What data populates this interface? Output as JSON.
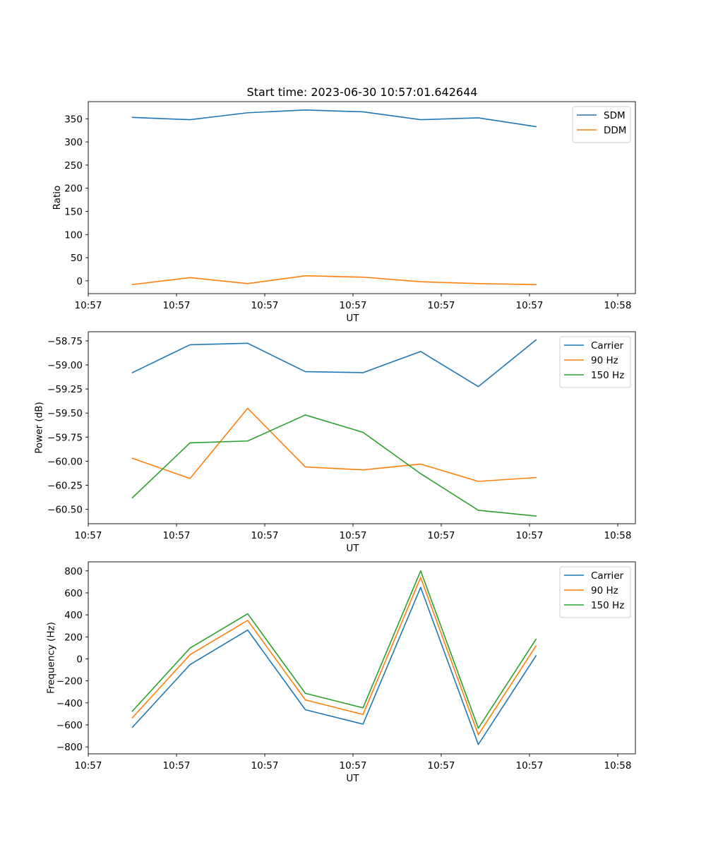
{
  "chart_data": [
    {
      "type": "line",
      "title": "Start time: 2023-06-30 10:57:01.642644",
      "xlabel": "UT",
      "ylabel": "Ratio",
      "xlim": [
        0,
        9.3
      ],
      "ylim": [
        -27.6,
        387.0
      ],
      "x_ticks": [
        0,
        1.5,
        3,
        4.5,
        6,
        7.5,
        9
      ],
      "x_tick_labels": [
        "10:57",
        "10:57",
        "10:57",
        "10:57",
        "10:57",
        "10:57",
        "10:58"
      ],
      "y_ticks": [
        0,
        50,
        100,
        150,
        200,
        250,
        300,
        350
      ],
      "y_tick_labels": [
        "0",
        "50",
        "100",
        "150",
        "200",
        "250",
        "300",
        "350"
      ],
      "x": [
        0.75,
        1.73,
        2.71,
        3.69,
        4.67,
        5.65,
        6.63,
        7.61
      ],
      "series": [
        {
          "name": "SDM",
          "color": "#1f77b4",
          "values": [
            353,
            348,
            363,
            369,
            365,
            348,
            352,
            333
          ]
        },
        {
          "name": "DDM",
          "color": "#ff7f0e",
          "values": [
            -8,
            7,
            -6,
            11,
            8,
            -2,
            -6,
            -8
          ]
        }
      ],
      "legend": "top-right",
      "grid": false
    },
    {
      "type": "line",
      "title": "",
      "xlabel": "UT",
      "ylabel": "Power (dB)",
      "xlim": [
        0,
        9.3
      ],
      "ylim": [
        -60.65,
        -58.655
      ],
      "x_ticks": [
        0,
        1.5,
        3,
        4.5,
        6,
        7.5,
        9
      ],
      "x_tick_labels": [
        "10:57",
        "10:57",
        "10:57",
        "10:57",
        "10:57",
        "10:57",
        "10:58"
      ],
      "y_ticks": [
        -60.5,
        -60.25,
        -60.0,
        -59.75,
        -59.5,
        -59.25,
        -59.0,
        -58.75
      ],
      "y_tick_labels": [
        "−60.50",
        "−60.25",
        "−60.00",
        "−59.75",
        "−59.50",
        "−59.25",
        "−59.00",
        "−58.75"
      ],
      "x": [
        0.75,
        1.73,
        2.71,
        3.69,
        4.67,
        5.65,
        6.63,
        7.61
      ],
      "series": [
        {
          "name": "Carrier",
          "color": "#1f77b4",
          "values": [
            -59.08,
            -58.79,
            -58.775,
            -59.07,
            -59.08,
            -58.86,
            -59.225,
            -58.74
          ]
        },
        {
          "name": "90 Hz",
          "color": "#ff7f0e",
          "values": [
            -59.97,
            -60.18,
            -59.45,
            -60.06,
            -60.09,
            -60.03,
            -60.21,
            -60.17
          ]
        },
        {
          "name": "150 Hz",
          "color": "#2ca02c",
          "values": [
            -60.38,
            -59.81,
            -59.79,
            -59.52,
            -59.7,
            -60.13,
            -60.51,
            -60.57
          ]
        }
      ],
      "legend": "top-right",
      "grid": false
    },
    {
      "type": "line",
      "title": "",
      "xlabel": "UT",
      "ylabel": "Frequency (Hz)",
      "xlim": [
        0,
        9.3
      ],
      "ylim": [
        -863,
        882
      ],
      "x_ticks": [
        0,
        1.5,
        3,
        4.5,
        6,
        7.5,
        9
      ],
      "x_tick_labels": [
        "10:57",
        "10:57",
        "10:57",
        "10:57",
        "10:57",
        "10:57",
        "10:58"
      ],
      "y_ticks": [
        -800,
        -600,
        -400,
        -200,
        0,
        200,
        400,
        600,
        800
      ],
      "y_tick_labels": [
        "−800",
        "−600",
        "−400",
        "−200",
        "0",
        "200",
        "400",
        "600",
        "800"
      ],
      "x": [
        0.75,
        1.73,
        2.71,
        3.69,
        4.67,
        5.65,
        6.63,
        7.61
      ],
      "series": [
        {
          "name": "Carrier",
          "color": "#1f77b4",
          "values": [
            -622,
            -52,
            262,
            -462,
            -593,
            650,
            -778,
            28
          ]
        },
        {
          "name": "90 Hz",
          "color": "#ff7f0e",
          "values": [
            -535,
            38,
            350,
            -373,
            -505,
            740,
            -690,
            118
          ]
        },
        {
          "name": "150 Hz",
          "color": "#2ca02c",
          "values": [
            -475,
            98,
            410,
            -313,
            -445,
            800,
            -630,
            178
          ]
        }
      ],
      "legend": "top-right",
      "grid": false
    }
  ]
}
